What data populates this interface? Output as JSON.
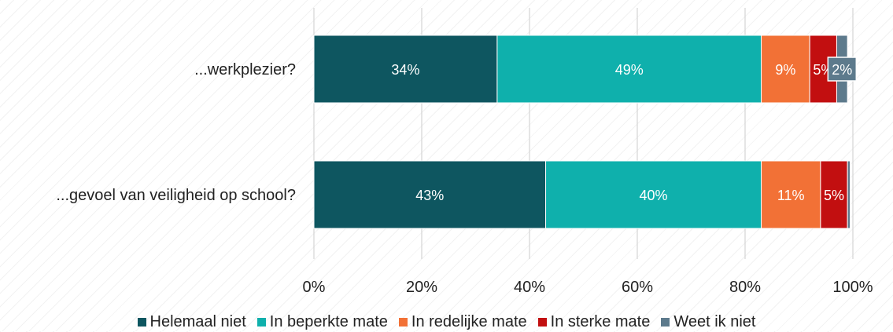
{
  "chart_data": {
    "type": "bar",
    "orientation": "horizontal",
    "stacked": true,
    "categories": [
      "...werkplezier?",
      "...gevoel van veiligheid op school?"
    ],
    "series": [
      {
        "name": "Helemaal niet",
        "color": "#0e5660",
        "values": [
          34,
          43
        ],
        "labels": [
          "34%",
          "43%"
        ]
      },
      {
        "name": "In beperkte mate",
        "color": "#0fb0ac",
        "values": [
          49,
          40
        ],
        "labels": [
          "49%",
          "40%"
        ]
      },
      {
        "name": "In redelijke mate",
        "color": "#f27136",
        "values": [
          9,
          11
        ],
        "labels": [
          "9%",
          "11%"
        ]
      },
      {
        "name": "In sterke mate",
        "color": "#c20f10",
        "values": [
          5,
          5
        ],
        "labels": [
          "5%",
          "5%"
        ]
      },
      {
        "name": "Weet ik niet",
        "color": "#5d7a8c",
        "values": [
          2,
          0.5
        ],
        "labels": [
          "2%",
          ""
        ]
      }
    ],
    "xlim": [
      0,
      100
    ],
    "xticks": [
      "0%",
      "20%",
      "40%",
      "60%",
      "80%",
      "100%"
    ],
    "grid": true,
    "legend_position": "bottom",
    "title": "",
    "xlabel": "",
    "ylabel": ""
  }
}
